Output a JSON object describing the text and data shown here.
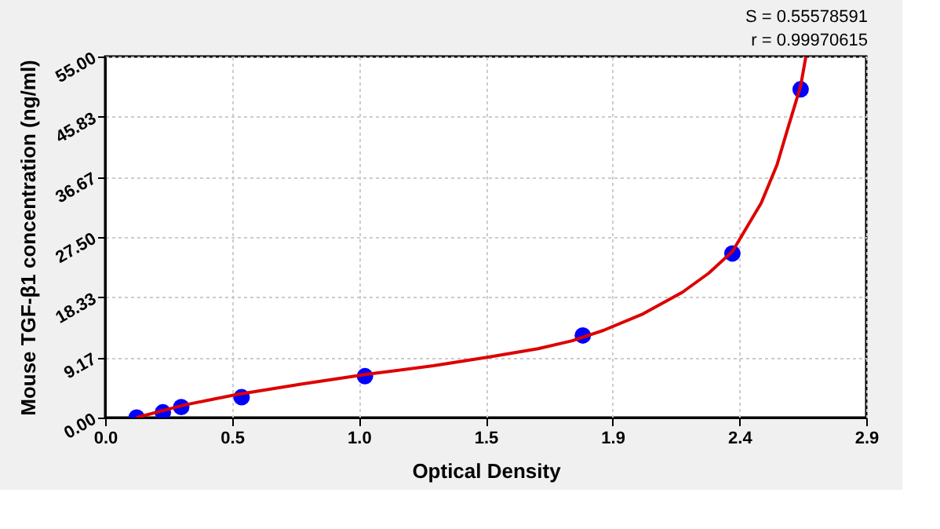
{
  "chart_data": {
    "type": "scatter",
    "xlabel": "Optical Density",
    "ylabel": "Mouse  TGF-β1 concentration (ng/ml)",
    "annotations": [
      "S = 0.55578591",
      "r = 0.99970615"
    ],
    "xlim": [
      0,
      2.9
    ],
    "xticks": [
      {
        "value": 0,
        "label": "0.0"
      },
      {
        "value": 0.4833,
        "label": "0.5"
      },
      {
        "value": 0.9667,
        "label": "1.0"
      },
      {
        "value": 1.45,
        "label": "1.5"
      },
      {
        "value": 1.9333,
        "label": "1.9"
      },
      {
        "value": 2.4167,
        "label": "2.4"
      },
      {
        "value": 2.9,
        "label": "2.9"
      }
    ],
    "ylim": [
      0,
      55
    ],
    "yticks": [
      {
        "value": 0,
        "label": "0.00"
      },
      {
        "value": 9.1667,
        "label": "9.17"
      },
      {
        "value": 18.3333,
        "label": "18.33"
      },
      {
        "value": 27.5,
        "label": "27.50"
      },
      {
        "value": 36.6667,
        "label": "36.67"
      },
      {
        "value": 45.8333,
        "label": "45.83"
      },
      {
        "value": 55,
        "label": "55.00"
      }
    ],
    "grid": true,
    "series": [
      {
        "marker": "circle",
        "color": "#0000ff",
        "x": [
          0.12,
          0.22,
          0.29,
          0.52,
          0.99,
          1.82,
          2.39,
          2.65
        ],
        "values": [
          0,
          0.8,
          1.6,
          3.1,
          6.3,
          12.5,
          25,
          50
        ]
      },
      {
        "type": "line",
        "line_style": "solid",
        "color": "#dd0000",
        "x": [
          0.12,
          0.3,
          0.5,
          0.75,
          1.0,
          1.25,
          1.46,
          1.65,
          1.78,
          1.9,
          2.05,
          2.2,
          2.3,
          2.39,
          2.5,
          2.56,
          2.6,
          2.65,
          2.67
        ],
        "values": [
          0,
          1.9,
          3.5,
          5.1,
          6.6,
          7.9,
          9.2,
          10.5,
          11.7,
          13.3,
          15.8,
          19.1,
          22.0,
          25.3,
          32.7,
          38.5,
          43.9,
          50.5,
          55
        ]
      }
    ]
  }
}
